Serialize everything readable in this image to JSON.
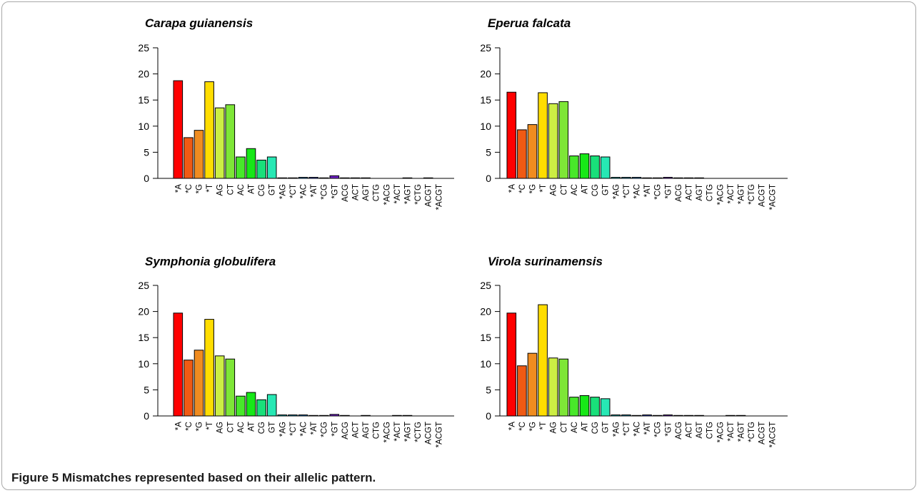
{
  "caption": {
    "label": "Figure 5",
    "text": "Mismatches represented based on their allelic pattern."
  },
  "chart_data": [
    {
      "type": "bar",
      "title": "Carapa guianensis",
      "categories": [
        "*A",
        "*C",
        "*G",
        "*T",
        "AG",
        "CT",
        "AC",
        "AT",
        "CG",
        "GT",
        "*AG",
        "*CT",
        "*AC",
        "*AT",
        "*CG",
        "*GT",
        "ACG",
        "ACT",
        "AGT",
        "CTG",
        "*ACG",
        "*ACT",
        "*AGT",
        "*CTG",
        "ACGT",
        "*ACGT"
      ],
      "values": [
        18.7,
        7.8,
        9.2,
        18.5,
        13.5,
        14.1,
        4.1,
        5.7,
        3.5,
        4.1,
        0.1,
        0.1,
        0.2,
        0.2,
        0.1,
        0.5,
        0.1,
        0.1,
        0.1,
        0,
        0,
        0,
        0.1,
        0,
        0.1,
        0
      ],
      "colors": [
        "#ff0000",
        "#f05a14",
        "#f08c20",
        "#ffdd00",
        "#ccee44",
        "#7ee637",
        "#48e82a",
        "#17e817",
        "#19e07a",
        "#27e8b4",
        "#14c8c8",
        "#1fa0c8",
        "#2888d8",
        "#3850e0",
        "#3c2cd8",
        "#7020c8",
        "#2244cc",
        "#2244cc",
        "#2244cc",
        "#2244cc",
        "#2244cc",
        "#2244cc",
        "#2244cc",
        "#2244cc",
        "#2244cc",
        "#2244cc"
      ],
      "ylim": [
        0,
        25
      ],
      "yticks": [
        "0",
        "5",
        "10",
        "15",
        "20",
        "25"
      ],
      "grid": false
    },
    {
      "type": "bar",
      "title": "Eperua falcata",
      "categories": [
        "*A",
        "*C",
        "*G",
        "*T",
        "AG",
        "CT",
        "AC",
        "AT",
        "CG",
        "GT",
        "*AG",
        "*CT",
        "*AC",
        "*AT",
        "*CG",
        "*GT",
        "ACG",
        "ACT",
        "AGT",
        "CTG",
        "*ACG",
        "*ACT",
        "*AGT",
        "*CTG",
        "ACGT",
        "*ACGT"
      ],
      "values": [
        16.5,
        9.3,
        10.3,
        16.4,
        14.3,
        14.7,
        4.3,
        4.7,
        4.3,
        4.1,
        0.2,
        0.2,
        0.2,
        0.1,
        0.1,
        0.2,
        0.1,
        0.1,
        0.1,
        0,
        0,
        0,
        0,
        0,
        0,
        0
      ],
      "colors": [
        "#ff0000",
        "#f05a14",
        "#f08c20",
        "#ffdd00",
        "#ccee44",
        "#7ee637",
        "#48e82a",
        "#17e817",
        "#19e07a",
        "#27e8b4",
        "#14c8c8",
        "#1fa0c8",
        "#2888d8",
        "#3850e0",
        "#3c2cd8",
        "#7020c8",
        "#2244cc",
        "#2244cc",
        "#2244cc",
        "#2244cc",
        "#2244cc",
        "#2244cc",
        "#2244cc",
        "#2244cc",
        "#2244cc",
        "#2244cc"
      ],
      "ylim": [
        0,
        25
      ],
      "yticks": [
        "0",
        "5",
        "10",
        "15",
        "20",
        "25"
      ],
      "grid": false
    },
    {
      "type": "bar",
      "title": "Symphonia globulifera",
      "categories": [
        "*A",
        "*C",
        "*G",
        "*T",
        "AG",
        "CT",
        "AC",
        "AT",
        "CG",
        "GT",
        "*AG",
        "*CT",
        "*AC",
        "*AT",
        "*CG",
        "*GT",
        "ACG",
        "ACT",
        "AGT",
        "CTG",
        "*ACG",
        "*ACT",
        "*AGT",
        "*CTG",
        "ACGT",
        "*ACGT"
      ],
      "values": [
        19.7,
        10.7,
        12.6,
        18.5,
        11.5,
        10.9,
        3.8,
        4.5,
        3.1,
        4.1,
        0.2,
        0.2,
        0.2,
        0.1,
        0.1,
        0.3,
        0.1,
        0,
        0.1,
        0,
        0,
        0.1,
        0.1,
        0,
        0,
        0
      ],
      "colors": [
        "#ff0000",
        "#f05a14",
        "#f08c20",
        "#ffdd00",
        "#ccee44",
        "#7ee637",
        "#48e82a",
        "#17e817",
        "#19e07a",
        "#27e8b4",
        "#14c8c8",
        "#1fa0c8",
        "#2888d8",
        "#3850e0",
        "#3c2cd8",
        "#7020c8",
        "#2244cc",
        "#2244cc",
        "#2244cc",
        "#2244cc",
        "#2244cc",
        "#2244cc",
        "#2244cc",
        "#2244cc",
        "#2244cc",
        "#2244cc"
      ],
      "ylim": [
        0,
        25
      ],
      "yticks": [
        "0",
        "5",
        "10",
        "15",
        "20",
        "25"
      ],
      "grid": false
    },
    {
      "type": "bar",
      "title": "Virola surinamensis",
      "categories": [
        "*A",
        "*C",
        "*G",
        "*T",
        "AG",
        "CT",
        "AC",
        "AT",
        "CG",
        "GT",
        "*AG",
        "*CT",
        "*AC",
        "*AT",
        "*CG",
        "*GT",
        "ACG",
        "ACT",
        "AGT",
        "CTG",
        "*ACG",
        "*ACT",
        "*AGT",
        "*CTG",
        "ACGT",
        "*ACGT"
      ],
      "values": [
        19.7,
        9.6,
        12.0,
        21.3,
        11.1,
        10.9,
        3.6,
        3.9,
        3.6,
        3.3,
        0.2,
        0.2,
        0.1,
        0.2,
        0.1,
        0.2,
        0.1,
        0.1,
        0.1,
        0,
        0,
        0.1,
        0.1,
        0,
        0,
        0
      ],
      "colors": [
        "#ff0000",
        "#f05a14",
        "#f08c20",
        "#ffdd00",
        "#ccee44",
        "#7ee637",
        "#48e82a",
        "#17e817",
        "#19e07a",
        "#27e8b4",
        "#14c8c8",
        "#1fa0c8",
        "#2888d8",
        "#3850e0",
        "#3c2cd8",
        "#7020c8",
        "#2244cc",
        "#2244cc",
        "#2244cc",
        "#2244cc",
        "#2244cc",
        "#2244cc",
        "#2244cc",
        "#2244cc",
        "#2244cc",
        "#2244cc"
      ],
      "ylim": [
        0,
        25
      ],
      "yticks": [
        "0",
        "5",
        "10",
        "15",
        "20",
        "25"
      ],
      "grid": false
    }
  ]
}
